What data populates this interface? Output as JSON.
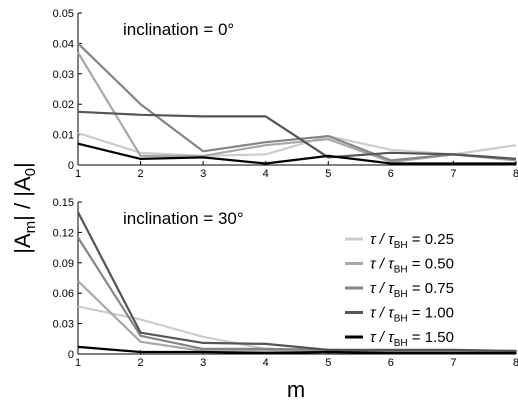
{
  "chart_data": [
    {
      "type": "line",
      "annotation": "inclination = 0°",
      "x": [
        1,
        2,
        3,
        4,
        5,
        6,
        7,
        8
      ],
      "xlim": [
        1,
        8
      ],
      "ylim": [
        0,
        0.05
      ],
      "xticks": [
        "1",
        "2",
        "3",
        "4",
        "5",
        "6",
        "7",
        "8"
      ],
      "yticks": [
        {
          "v": 0,
          "label": "0"
        },
        {
          "v": 0.01,
          "label": "0.01"
        },
        {
          "v": 0.02,
          "label": "0.02"
        },
        {
          "v": 0.03,
          "label": "0.03"
        },
        {
          "v": 0.04,
          "label": "0.04"
        },
        {
          "v": 0.05,
          "label": "0.05"
        }
      ],
      "series": [
        {
          "name": "τ / τBH = 0.25",
          "color": "#cccccc",
          "values": [
            0.0105,
            0.004,
            0.003,
            0.0035,
            0.0095,
            0.005,
            0.0035,
            0.0065
          ]
        },
        {
          "name": "τ / τBH = 0.50",
          "color": "#a8a8a8",
          "values": [
            0.037,
            0.003,
            0.003,
            0.0065,
            0.0085,
            0.001,
            0.0035,
            0.0015
          ]
        },
        {
          "name": "τ / τBH = 0.75",
          "color": "#858585",
          "values": [
            0.04,
            0.02,
            0.0045,
            0.0075,
            0.0095,
            0.0015,
            0.0035,
            0.002
          ]
        },
        {
          "name": "τ / τBH = 1.00",
          "color": "#555555",
          "values": [
            0.0175,
            0.0165,
            0.016,
            0.016,
            0.0025,
            0.004,
            0.0035,
            0.002
          ]
        },
        {
          "name": "τ / τBH = 1.50",
          "color": "#000000",
          "values": [
            0.007,
            0.002,
            0.0025,
            0.0005,
            0.003,
            0.0005,
            0.0005,
            0.0005
          ]
        }
      ]
    },
    {
      "type": "line",
      "annotation": "inclination = 30°",
      "x": [
        1,
        2,
        3,
        4,
        5,
        6,
        7,
        8
      ],
      "xlim": [
        1,
        8
      ],
      "ylim": [
        0,
        0.15
      ],
      "xticks": [
        "1",
        "2",
        "3",
        "4",
        "5",
        "6",
        "7",
        "8"
      ],
      "yticks": [
        {
          "v": 0,
          "label": "0"
        },
        {
          "v": 0.03,
          "label": "0.03"
        },
        {
          "v": 0.06,
          "label": "0.06"
        },
        {
          "v": 0.09,
          "label": "0.09"
        },
        {
          "v": 0.12,
          "label": "0.12"
        },
        {
          "v": 0.15,
          "label": "0.15"
        }
      ],
      "series": [
        {
          "name": "τ / τBH = 0.25",
          "color": "#cccccc",
          "values": [
            0.047,
            0.034,
            0.017,
            0.005,
            0.003,
            0.002,
            0.002,
            0.003
          ]
        },
        {
          "name": "τ / τBH = 0.50",
          "color": "#a8a8a8",
          "values": [
            0.072,
            0.012,
            0.003,
            0.003,
            0.003,
            0.002,
            0.002,
            0.002
          ]
        },
        {
          "name": "τ / τBH = 0.75",
          "color": "#858585",
          "values": [
            0.115,
            0.018,
            0.005,
            0.005,
            0.004,
            0.003,
            0.003,
            0.003
          ]
        },
        {
          "name": "τ / τBH = 1.00",
          "color": "#555555",
          "values": [
            0.14,
            0.021,
            0.011,
            0.01,
            0.004,
            0.004,
            0.004,
            0.003
          ]
        },
        {
          "name": "τ / τBH = 1.50",
          "color": "#000000",
          "values": [
            0.007,
            0.002,
            0.002,
            0.001,
            0.002,
            0.001,
            0.001,
            0.001
          ]
        }
      ]
    }
  ],
  "legend": [
    {
      "prefix": "τ / τ",
      "sub": "BH",
      "suffix": " = 0.25",
      "color": "#cccccc"
    },
    {
      "prefix": "τ / τ",
      "sub": "BH",
      "suffix": " = 0.50",
      "color": "#a8a8a8"
    },
    {
      "prefix": "τ / τ",
      "sub": "BH",
      "suffix": " = 0.75",
      "color": "#858585"
    },
    {
      "prefix": "τ / τ",
      "sub": "BH",
      "suffix": " = 1.00",
      "color": "#555555"
    },
    {
      "prefix": "τ / τ",
      "sub": "BH",
      "suffix": " = 1.50",
      "color": "#000000"
    }
  ],
  "ylabel": {
    "a": "|A",
    "a_sub": "m",
    "b": "| / |A",
    "b_sub": "0",
    "c": "|"
  },
  "xlabel": "m"
}
